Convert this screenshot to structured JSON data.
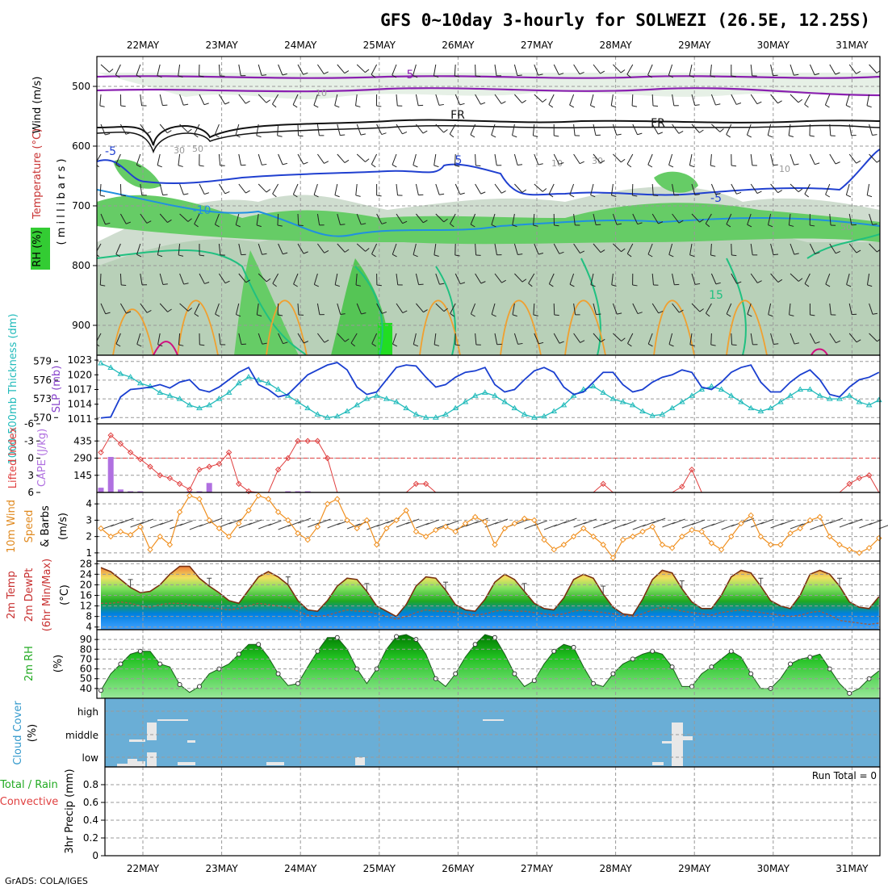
{
  "title": "GFS 0~10day 3-hourly for SOLWEZI (26.5E, 12.25S)",
  "credit": "GrADS: COLA/IGES",
  "dates": [
    "22MAY",
    "23MAY",
    "24MAY",
    "25MAY",
    "26MAY",
    "27MAY",
    "28MAY",
    "29MAY",
    "30MAY",
    "31MAY"
  ],
  "colors": {
    "cloud_bg": "#6aaed6",
    "rh_fill": "#33cc33",
    "temp_warm": "#f0e060",
    "temp_cool": "#2a8fff",
    "thickness": "#22bbbb",
    "slp": "#1a3fd0",
    "lifted": "#e04040",
    "cape": "#b070e0",
    "wind": "#f09020"
  },
  "panels": {
    "profile": {
      "labels": {
        "wind": "Wind (m/s)",
        "temperature": "Temperature (°C)",
        "rh": "RH (%)",
        "axis": "( m i l l i b a r s )"
      },
      "ticks": [
        "500",
        "600",
        "700",
        "800",
        "900"
      ],
      "contour_labels": [
        "5",
        "FR",
        "FR",
        "-5",
        "5",
        "-5",
        "-10",
        "15",
        "10",
        "30",
        "50",
        "30",
        "10",
        "10",
        "50"
      ]
    },
    "thickness_slp": {
      "left_label": "1000-500mb Thickness (dm)",
      "right_label": "SLP (mb)",
      "left_ticks": [
        "579",
        "576",
        "573",
        "570"
      ],
      "right_ticks": [
        "1023",
        "1020",
        "1017",
        "1014",
        "1011"
      ]
    },
    "cape": {
      "left_label": "Lifted Index",
      "right_label": "CAPE (J/kg)",
      "left_ticks": [
        "-6",
        "-3",
        "0",
        "3",
        "6"
      ],
      "right_ticks": [
        "435",
        "290",
        "145"
      ]
    },
    "wind10m": {
      "label_a": "10m Wind",
      "label_b": "Speed",
      "label_c": "& Barbs",
      "unit": "(m/s)",
      "ticks": [
        "4",
        "3",
        "2",
        "1"
      ]
    },
    "temp2m": {
      "label_a": "2m Temp",
      "label_b": "2m DewPt",
      "label_c": "(6hr Min/Max)",
      "unit": "(°C)",
      "ticks": [
        "28",
        "24",
        "20",
        "16",
        "12",
        "8",
        "4"
      ]
    },
    "rh2m": {
      "label_a": "2m RH",
      "unit": "(%)",
      "ticks": [
        "90",
        "80",
        "70",
        "60",
        "50",
        "40"
      ]
    },
    "cloud": {
      "label_a": "Cloud Cover",
      "unit": "(%)",
      "ticks": [
        "high",
        "middle",
        "low"
      ]
    },
    "precip": {
      "label_a": "Total / Rain",
      "label_b": "Convective",
      "label_c": "3hr Precip (mm)",
      "ticks": [
        "0.8",
        "0.6",
        "0.4",
        "0.2",
        "0"
      ],
      "run_total": "Run Total = 0"
    }
  },
  "chart_data": {
    "type": "line",
    "x_start": "21MAY 15Z",
    "x_step_hours": 3,
    "series": [
      {
        "name": "1000-500mb Thickness (dm)",
        "values": [
          578.7,
          578.0,
          577.0,
          576.5,
          575.5,
          575.0,
          574.0,
          573.5,
          573.0,
          572.0,
          571.5,
          572.0,
          573.0,
          574.0,
          575.5,
          576.5,
          576.0,
          575.5,
          574.5,
          573.5,
          572.5,
          571.5,
          570.5,
          570.0,
          570.2,
          571.0,
          572.0,
          573.0,
          573.5,
          573.0,
          572.5,
          571.5,
          570.5,
          570.0,
          570.0,
          570.5,
          571.5,
          572.5,
          573.5,
          574.0,
          573.5,
          572.5,
          571.5,
          570.5,
          570.0,
          570.2,
          571.0,
          572.0,
          573.5,
          574.5,
          575.0,
          574.0,
          573.0,
          572.5,
          572.0,
          571.0,
          570.3,
          570.5,
          571.5,
          572.5,
          573.5,
          574.5,
          575.0,
          574.5,
          573.5,
          572.5,
          571.5,
          571.0,
          571.5,
          572.5,
          573.5,
          574.5,
          574.5,
          573.5,
          573.0,
          573.0,
          573.5,
          572.5,
          572.0,
          572.8
        ],
        "ylim": [
          569,
          580
        ]
      },
      {
        "name": "SLP (mb)",
        "values": [
          1011.2,
          1011.4,
          1015.5,
          1017.0,
          1017.2,
          1017.5,
          1018.0,
          1017.3,
          1018.5,
          1019.0,
          1017.0,
          1016.5,
          1017.5,
          1019.0,
          1020.5,
          1021.5,
          1018.0,
          1017.0,
          1015.5,
          1016.0,
          1018.0,
          1020.0,
          1021.0,
          1022.0,
          1022.5,
          1021.0,
          1017.5,
          1016.0,
          1016.5,
          1019.0,
          1021.5,
          1022.0,
          1021.8,
          1019.5,
          1017.5,
          1018.0,
          1019.5,
          1020.5,
          1020.8,
          1021.5,
          1018.0,
          1016.5,
          1017.0,
          1019.0,
          1020.8,
          1021.5,
          1020.5,
          1017.5,
          1016.0,
          1016.5,
          1018.5,
          1020.5,
          1020.5,
          1018.0,
          1016.5,
          1017.0,
          1018.5,
          1019.5,
          1020.0,
          1021.0,
          1020.5,
          1017.5,
          1017.0,
          1018.5,
          1020.5,
          1021.5,
          1022.0,
          1018.5,
          1016.5,
          1016.5,
          1018.5,
          1020.0,
          1021.0,
          1019.0,
          1016.0,
          1015.5,
          1017.5,
          1019.0,
          1019.5,
          1020.5
        ],
        "ylim": [
          1010,
          1024
        ]
      },
      {
        "name": "Lifted Index",
        "values": [
          -1.0,
          -4.0,
          -2.5,
          -1.0,
          0.2,
          1.5,
          3.0,
          3.5,
          4.5,
          5.5,
          2.0,
          1.5,
          1.0,
          -1.0,
          4.5,
          5.8,
          6.0,
          6.0,
          2.0,
          0.0,
          -3.0,
          -3.0,
          -3.0,
          0.0,
          6.0,
          6.0,
          6.0,
          6.0,
          6.0,
          6.0,
          6.0,
          6.0,
          4.5,
          4.5,
          6.0,
          6.0,
          6.0,
          6.0,
          6.0,
          6.0,
          6.0,
          6.0,
          6.0,
          6.0,
          6.0,
          6.0,
          6.0,
          6.0,
          6.0,
          6.0,
          6.0,
          4.5,
          6.0,
          6.0,
          6.0,
          6.0,
          6.0,
          6.0,
          6.0,
          5.0,
          2.0,
          6.0,
          6.0,
          6.0,
          6.0,
          6.0,
          6.0,
          6.0,
          6.0,
          6.0,
          6.0,
          6.0,
          6.0,
          6.0,
          6.0,
          6.0,
          4.5,
          3.5,
          3.0,
          6.0
        ],
        "ylim": [
          -6,
          6
        ]
      },
      {
        "name": "10m Wind Speed (m/s)",
        "values": [
          2.5,
          2.0,
          2.3,
          2.1,
          2.6,
          1.2,
          2.0,
          1.5,
          3.5,
          4.5,
          4.3,
          3.0,
          2.5,
          2.0,
          2.8,
          3.6,
          4.5,
          4.3,
          3.5,
          3.0,
          2.2,
          1.8,
          2.6,
          4.0,
          4.3,
          3.0,
          2.5,
          3.0,
          1.5,
          2.5,
          3.0,
          3.6,
          2.3,
          2.0,
          2.4,
          2.6,
          2.3,
          2.8,
          3.2,
          2.9,
          1.5,
          2.5,
          2.8,
          3.1,
          3.0,
          1.8,
          1.2,
          1.5,
          2.0,
          2.5,
          2.0,
          1.5,
          0.7,
          1.8,
          2.0,
          2.3,
          2.6,
          1.5,
          1.3,
          2.0,
          2.4,
          2.3,
          1.6,
          1.2,
          2.0,
          2.8,
          3.3,
          2.0,
          1.5,
          1.5,
          2.2,
          2.5,
          3.0,
          3.2,
          2.0,
          1.5,
          1.2,
          1.0,
          1.3,
          1.9
        ],
        "ylim": [
          0.5,
          4.7
        ]
      },
      {
        "name": "2m Temp (°C)",
        "values": [
          26.5,
          25.0,
          22.0,
          19.0,
          17.0,
          17.5,
          20.0,
          24.0,
          27.0,
          27.0,
          22.5,
          19.5,
          17.0,
          14.0,
          13.0,
          18.0,
          23.0,
          25.0,
          23.0,
          20.0,
          14.0,
          10.5,
          10.0,
          14.0,
          19.5,
          22.5,
          22.0,
          17.5,
          12.0,
          10.0,
          8.0,
          12.5,
          19.5,
          23.0,
          22.5,
          18.0,
          12.5,
          10.5,
          10.0,
          14.5,
          21.0,
          24.0,
          22.0,
          17.5,
          13.0,
          11.0,
          10.5,
          15.0,
          22.0,
          24.0,
          22.5,
          16.5,
          11.5,
          9.0,
          8.5,
          14.5,
          22.0,
          25.5,
          24.5,
          18.5,
          13.5,
          11.0,
          11.0,
          16.0,
          23.0,
          25.5,
          24.5,
          19.5,
          14.0,
          12.0,
          11.0,
          16.0,
          24.0,
          25.5,
          24.0,
          19.5,
          13.5,
          11.5,
          11.0,
          15.5
        ],
        "ylim": [
          3,
          29
        ]
      },
      {
        "name": "2m DewPt (°C)",
        "values": [
          13.0,
          13.0,
          13.5,
          13.0,
          12.0,
          11.5,
          12.5,
          13.0,
          13.0,
          12.5,
          12.0,
          11.5,
          11.0,
          10.5,
          11.0,
          12.0,
          13.0,
          12.5,
          12.0,
          11.5,
          10.0,
          8.5,
          8.0,
          8.5,
          9.5,
          10.5,
          10.0,
          10.0,
          9.0,
          8.0,
          7.0,
          8.0,
          9.5,
          10.5,
          10.0,
          10.0,
          9.5,
          9.0,
          8.5,
          9.0,
          10.0,
          10.5,
          10.0,
          10.0,
          9.5,
          9.0,
          8.5,
          9.0,
          10.0,
          10.5,
          10.0,
          9.5,
          9.0,
          8.5,
          8.0,
          9.0,
          10.5,
          11.5,
          11.0,
          10.0,
          9.5,
          9.0,
          8.5,
          9.5,
          10.0,
          10.5,
          10.0,
          9.5,
          9.0,
          8.5,
          8.0,
          8.5,
          9.5,
          10.0,
          8.5,
          6.5,
          6.0,
          5.5,
          5.0,
          5.5
        ],
        "ylim": [
          3,
          29
        ]
      },
      {
        "name": "2m RH (%)",
        "values": [
          38,
          55,
          65,
          75,
          78,
          78,
          65,
          62,
          44,
          36,
          42,
          55,
          60,
          65,
          75,
          85,
          85,
          72,
          55,
          43,
          45,
          62,
          78,
          92,
          92,
          80,
          60,
          45,
          60,
          80,
          93,
          95,
          90,
          75,
          50,
          42,
          55,
          72,
          85,
          95,
          92,
          75,
          55,
          42,
          48,
          65,
          78,
          85,
          82,
          62,
          45,
          42,
          55,
          65,
          70,
          75,
          78,
          75,
          62,
          42,
          42,
          55,
          62,
          70,
          78,
          72,
          55,
          40,
          40,
          50,
          65,
          70,
          72,
          75,
          60,
          45,
          35,
          40,
          50,
          58
        ],
        "ylim": [
          30,
          100
        ]
      },
      {
        "name": "3hr Precip (mm)",
        "values": [
          0,
          0,
          0,
          0,
          0,
          0,
          0,
          0,
          0,
          0,
          0,
          0,
          0,
          0,
          0,
          0,
          0,
          0,
          0,
          0,
          0,
          0,
          0,
          0,
          0,
          0,
          0,
          0,
          0,
          0,
          0,
          0,
          0,
          0,
          0,
          0,
          0,
          0,
          0,
          0,
          0,
          0,
          0,
          0,
          0,
          0,
          0,
          0,
          0,
          0,
          0,
          0,
          0,
          0,
          0,
          0,
          0,
          0,
          0,
          0,
          0,
          0,
          0,
          0,
          0,
          0,
          0,
          0,
          0,
          0,
          0,
          0,
          0,
          0,
          0,
          0,
          0,
          0,
          0,
          0
        ],
        "ylim": [
          0,
          1
        ]
      }
    ],
    "cape": [
      40,
      300,
      25,
      10,
      10,
      0,
      0,
      0,
      0,
      10,
      10,
      80,
      0,
      0,
      0,
      0,
      0,
      0,
      0,
      10,
      10,
      10,
      0,
      0,
      0,
      0,
      0,
      0,
      0,
      0,
      0,
      0,
      0,
      0,
      0,
      0,
      0,
      0,
      0,
      0,
      0,
      0,
      0,
      0,
      0,
      0,
      0,
      0,
      0,
      0,
      0,
      0,
      0,
      0,
      0,
      0,
      0,
      0,
      0,
      0,
      0,
      0,
      0,
      0,
      0,
      0,
      0,
      0,
      0,
      0,
      0,
      0,
      0,
      0,
      0,
      0,
      0,
      0,
      0,
      0
    ],
    "cape_ylim": [
      0,
      580
    ],
    "xlabel": "",
    "ylabel": ""
  }
}
